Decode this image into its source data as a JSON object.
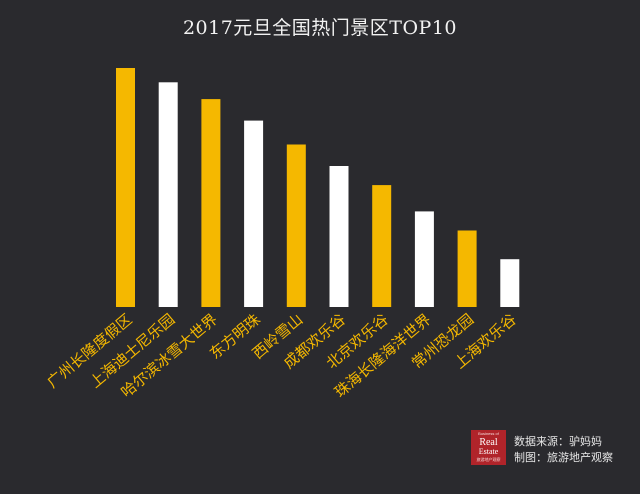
{
  "chart_data": {
    "type": "bar",
    "title": "2017元旦全国热门景区TOP10",
    "categories": [
      "广州长隆度假区",
      "上海迪士尼乐园",
      "哈尔滨冰雪大世界",
      "东方明珠",
      "西岭雪山",
      "成都欢乐谷",
      "北京欢乐谷",
      "珠海长隆海洋世界",
      "常州恐龙园",
      "上海欢乐谷"
    ],
    "values": [
      100,
      94,
      87,
      78,
      68,
      59,
      51,
      40,
      32,
      20
    ],
    "bar_colors": [
      "#f5b800",
      "#ffffff",
      "#f5b800",
      "#ffffff",
      "#f5b800",
      "#ffffff",
      "#f5b800",
      "#ffffff",
      "#f5b800",
      "#ffffff"
    ],
    "ylim": [
      0,
      100
    ],
    "xlabel": "",
    "ylabel": "",
    "grid": false,
    "legend": "none"
  },
  "colors": {
    "background": "#2a2a2e",
    "accent_yellow": "#f5b800",
    "accent_white": "#ffffff",
    "logo_red": "#b0242a"
  },
  "footer": {
    "logo": {
      "line1": "Business of",
      "line2": "Real",
      "line3": "Estate",
      "line4": "旅游地产观察"
    },
    "source": "数据来源：驴妈妈",
    "credit": "制图：旅游地产观察"
  }
}
